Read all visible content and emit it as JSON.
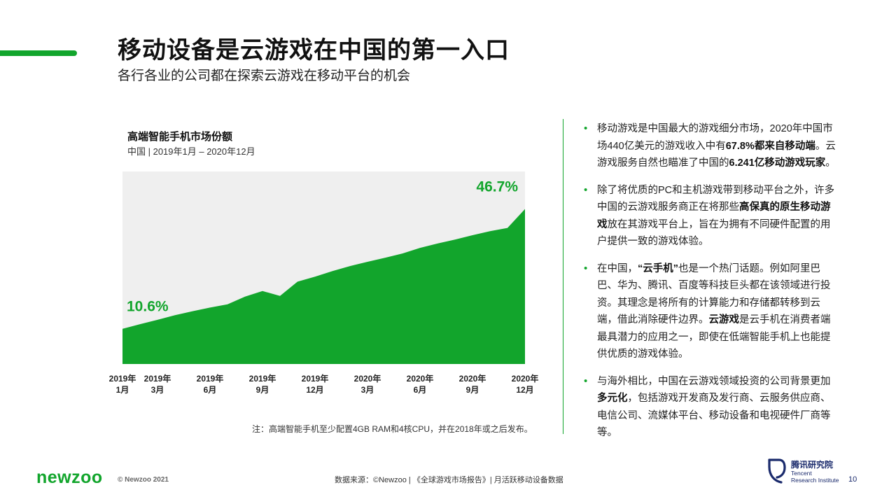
{
  "header": {
    "title": "移动设备是云游戏在中国的第一入口",
    "subtitle": "各行各业的公司都在探索云游戏在移动平台的机会"
  },
  "chart": {
    "title": "高端智能手机市场份额",
    "subtitle": "中国 | 2019年1月 – 2020年12月",
    "note": "注：高端智能手机至少配置4GB RAM和4核CPU，并在2018年或之后发布。"
  },
  "chart_data": {
    "type": "area",
    "x": [
      "2019-01",
      "2019-02",
      "2019-03",
      "2019-04",
      "2019-05",
      "2019-06",
      "2019-07",
      "2019-08",
      "2019-09",
      "2019-10",
      "2019-11",
      "2019-12",
      "2020-01",
      "2020-02",
      "2020-03",
      "2020-04",
      "2020-05",
      "2020-06",
      "2020-07",
      "2020-08",
      "2020-09",
      "2020-10",
      "2020-11",
      "2020-12"
    ],
    "values": [
      10.6,
      12.0,
      13.3,
      14.7,
      15.9,
      17.0,
      18.0,
      20.3,
      22.0,
      20.5,
      24.8,
      26.3,
      28.0,
      29.5,
      30.8,
      32.0,
      33.3,
      35.0,
      36.3,
      37.5,
      38.8,
      40.0,
      41.0,
      46.7
    ],
    "tick_labels": [
      {
        "idx": 0,
        "year": "2019年",
        "month": "1月"
      },
      {
        "idx": 2,
        "year": "2019年",
        "month": "3月"
      },
      {
        "idx": 5,
        "year": "2019年",
        "month": "6月"
      },
      {
        "idx": 8,
        "year": "2019年",
        "month": "9月"
      },
      {
        "idx": 11,
        "year": "2019年",
        "month": "12月"
      },
      {
        "idx": 14,
        "year": "2020年",
        "month": "3月"
      },
      {
        "idx": 17,
        "year": "2020年",
        "month": "6月"
      },
      {
        "idx": 20,
        "year": "2020年",
        "month": "9月"
      },
      {
        "idx": 23,
        "year": "2020年",
        "month": "12月"
      }
    ],
    "data_labels": [
      {
        "idx": 0,
        "text": "10.6%"
      },
      {
        "idx": 23,
        "text": "46.7%"
      }
    ],
    "ylim": [
      0,
      58
    ],
    "colors": {
      "area": "#12a52c",
      "plot_bg": "#efefef",
      "label": "#12a52c"
    }
  },
  "bullets": [
    [
      {
        "t": "移动游戏是中国最大的游戏细分市场，2020年中国"
      },
      {
        "t": "市场440亿美元的游戏收入中有"
      },
      {
        "t": "67.8%都来自移动",
        "b": true
      },
      {
        "t": "端",
        "b": true
      },
      {
        "t": "。云游戏服务自然也瞄准了中国的"
      },
      {
        "t": "6.241亿移动游",
        "b": true
      },
      {
        "t": "戏玩家",
        "b": true
      },
      {
        "t": "。"
      }
    ],
    [
      {
        "t": "除了将优质的PC和主机游戏带到移动平台之外，许"
      },
      {
        "t": "多中国的云游戏服务商正在将那些"
      },
      {
        "t": "高保真的原生移",
        "b": true
      },
      {
        "t": "动游戏",
        "b": true
      },
      {
        "t": "放在其游戏平台上，旨在为拥有不同硬件配"
      },
      {
        "t": "置的用户提供一致的游戏体验。"
      }
    ],
    [
      {
        "t": "在中国，"
      },
      {
        "t": "“云手机”",
        "b": true
      },
      {
        "t": "也是一个热门话题。例如阿里"
      },
      {
        "t": "巴巴、华为、腾讯、百度等科技巨头都在该领域进"
      },
      {
        "t": "行投资。其理念是将所有的计算能力和存储都转移"
      },
      {
        "t": "到云端，借此消除硬件边界。"
      },
      {
        "t": "云游戏",
        "b": true
      },
      {
        "t": "是云手机在消"
      },
      {
        "t": "费者端最具潜力的应用之一，即使在低端智能手机"
      },
      {
        "t": "上也能提供优质的游戏体验。"
      }
    ],
    [
      {
        "t": "与海外相比，中国在云游戏领域投资的公司背景更"
      },
      {
        "t": "加"
      },
      {
        "t": "多元化",
        "b": true
      },
      {
        "t": "，包括游戏开发商及发行商、云服务供应"
      },
      {
        "t": "商、电信公司、流媒体平台、移动设备和电视硬件"
      },
      {
        "t": "厂商等等。"
      }
    ]
  ],
  "footer": {
    "brand": "newzoo",
    "copyright": "© Newzoo 2021",
    "source": "数据来源：©Newzoo | 《全球游戏市场报告》| 月活跃移动设备数据",
    "partner_cn": "腾讯研究院",
    "partner_en_1": "Tencent",
    "partner_en_2": "Research Institute",
    "page_number": "10"
  }
}
